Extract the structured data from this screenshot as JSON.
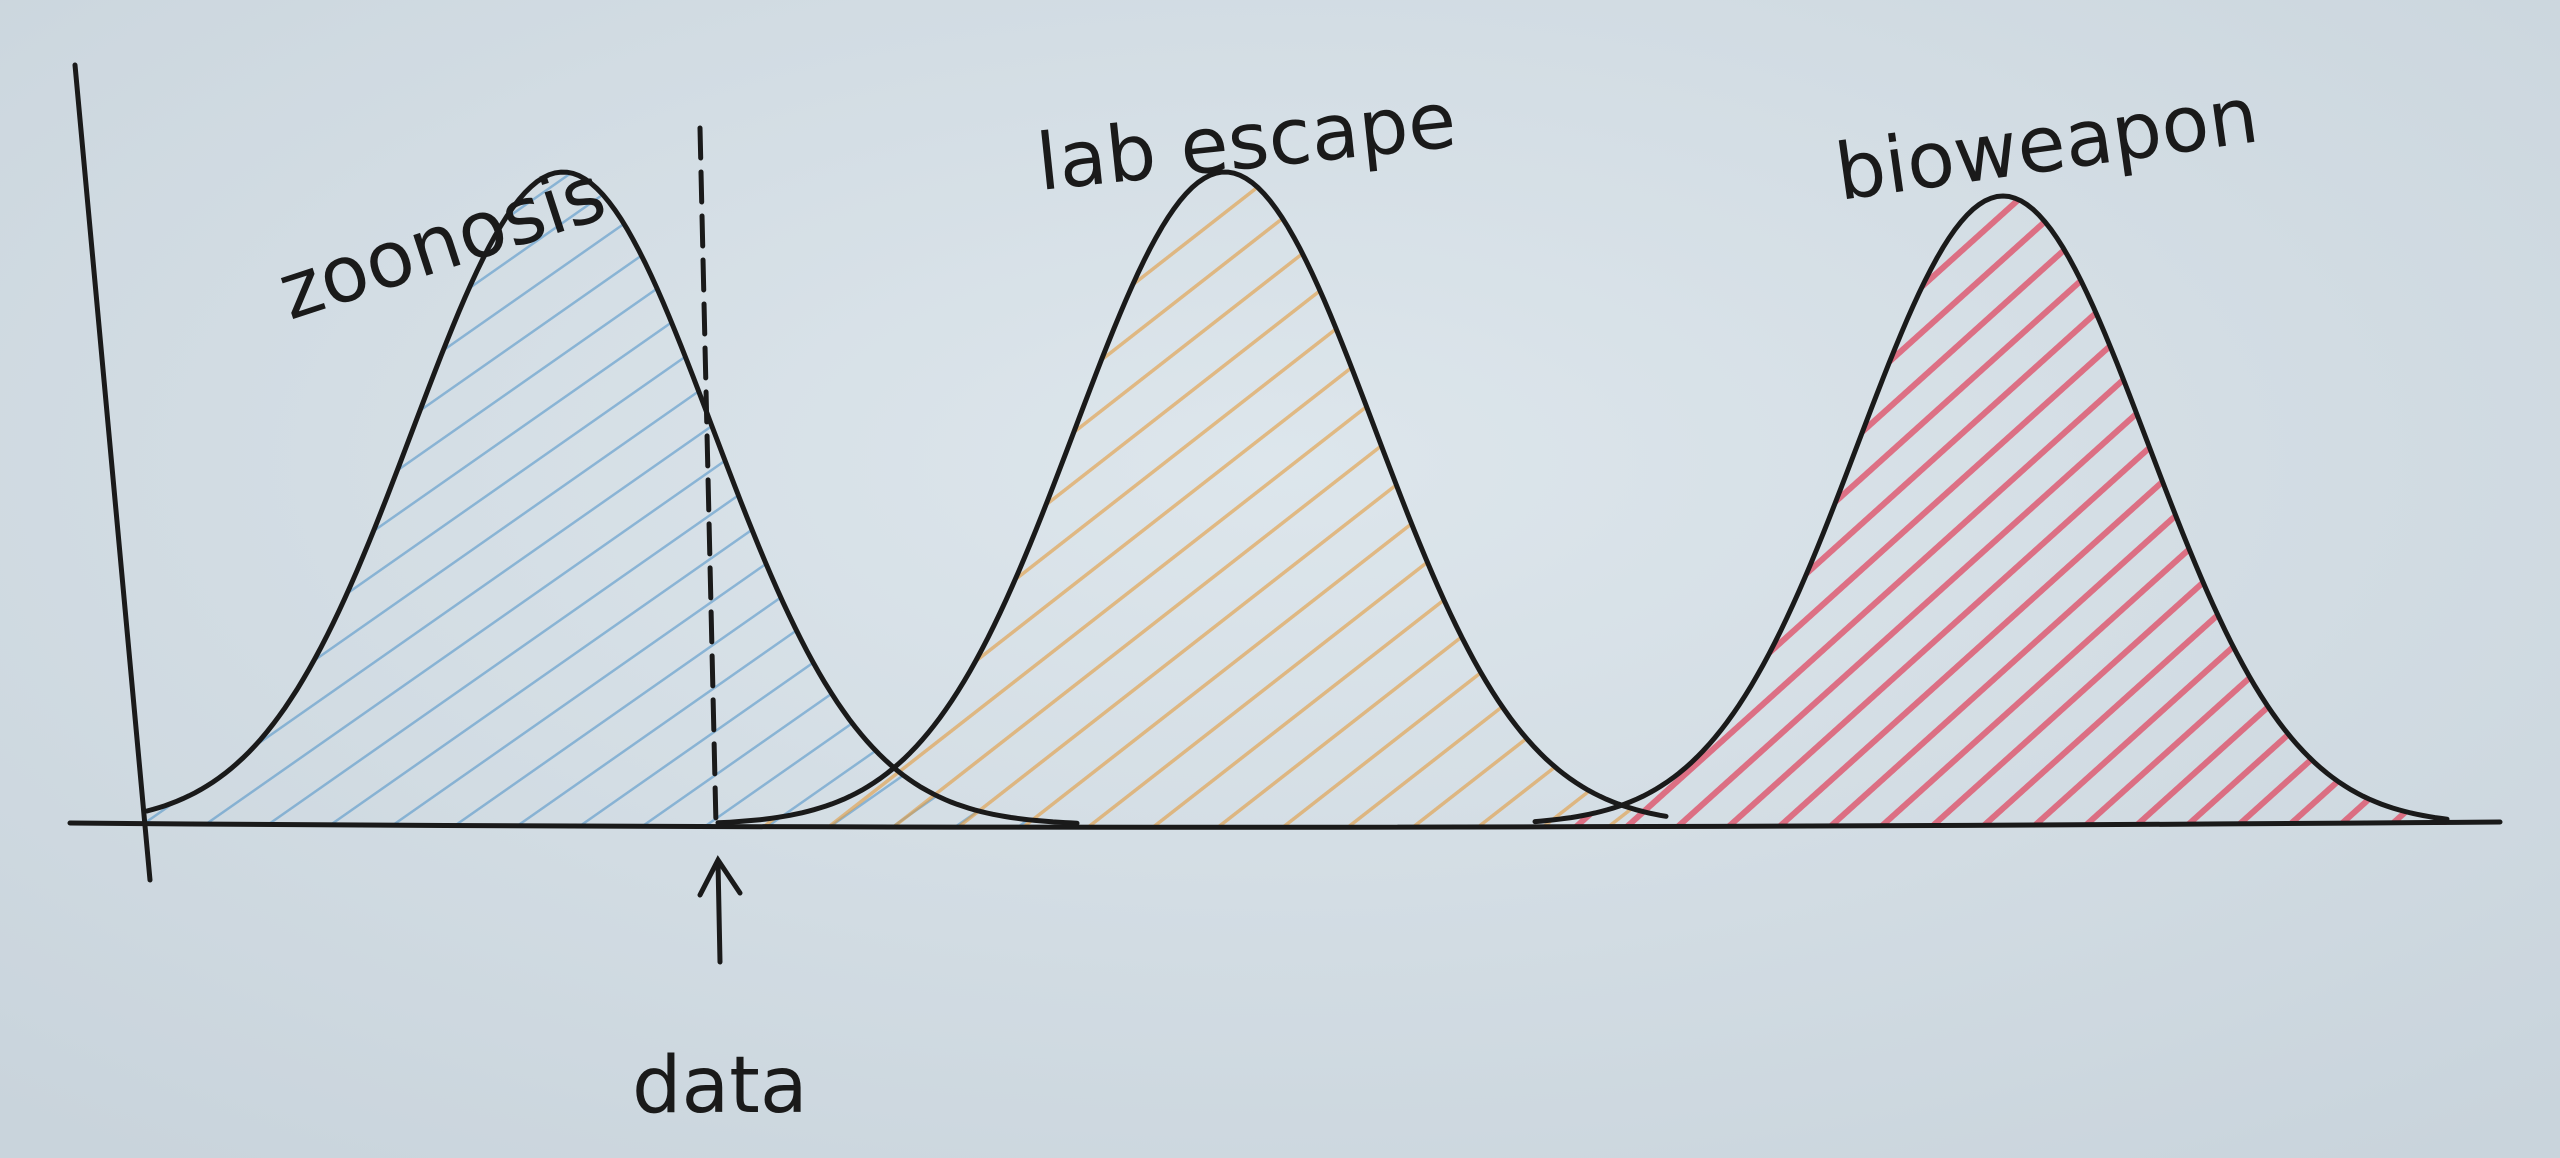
{
  "curves": [
    {
      "label": "zoonosis"
    },
    {
      "label": "lab escape"
    },
    {
      "label": "bioweapon"
    }
  ],
  "marker": {
    "label": "data"
  }
}
